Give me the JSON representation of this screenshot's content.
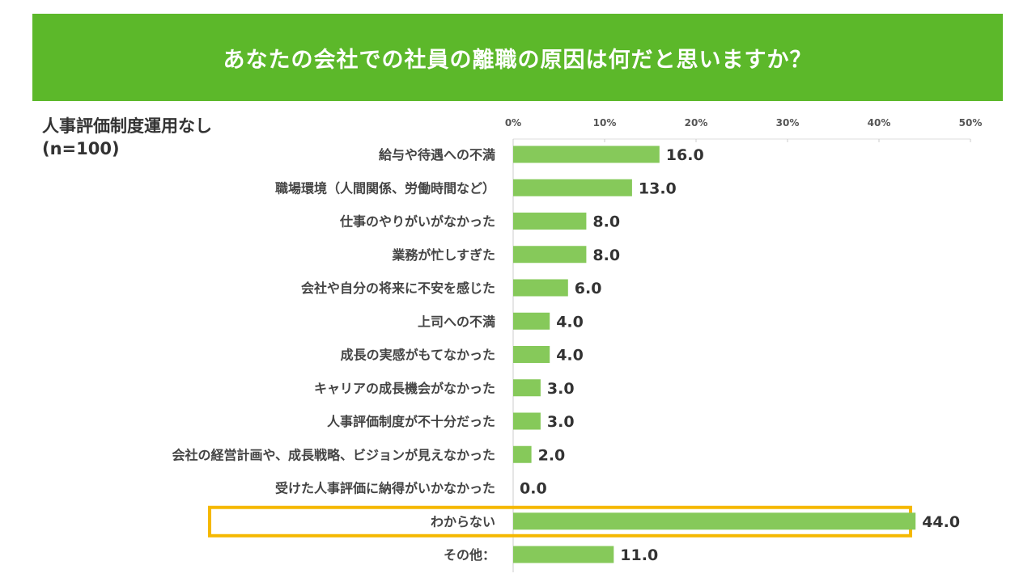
{
  "header": {
    "title": "あなたの会社での社員の離職の原因は何だと思いますか？"
  },
  "subtitle": {
    "line1": "人事評価制度運用なし",
    "line2": "(n=100)"
  },
  "chart_data": {
    "type": "bar",
    "orientation": "horizontal",
    "categories": [
      "給与や待遇への不満",
      "職場環境（人間関係、労働時間など）",
      "仕事のやりがいがなかった",
      "業務が忙しすぎた",
      "会社や自分の将来に不安を感じた",
      "上司への不満",
      "成長の実感がもてなかった",
      "キャリアの成長機会がなかった",
      "人事評価制度が不十分だった",
      "会社の経営計画や、成長戦略、ビジョンが見えなかった",
      "受けた人事評価に納得がいかなかった",
      "わからない",
      "その他："
    ],
    "values": [
      16.0,
      13.0,
      8.0,
      8.0,
      6.0,
      4.0,
      4.0,
      3.0,
      3.0,
      2.0,
      0.0,
      44.0,
      11.0
    ],
    "xlim": [
      0,
      50
    ],
    "ticks": [
      "0%",
      "10%",
      "20%",
      "30%",
      "40%",
      "50%"
    ],
    "bar_color": "#86c95a",
    "highlight": {
      "category": "わからない",
      "color": "#f5b800"
    },
    "grid": true
  }
}
